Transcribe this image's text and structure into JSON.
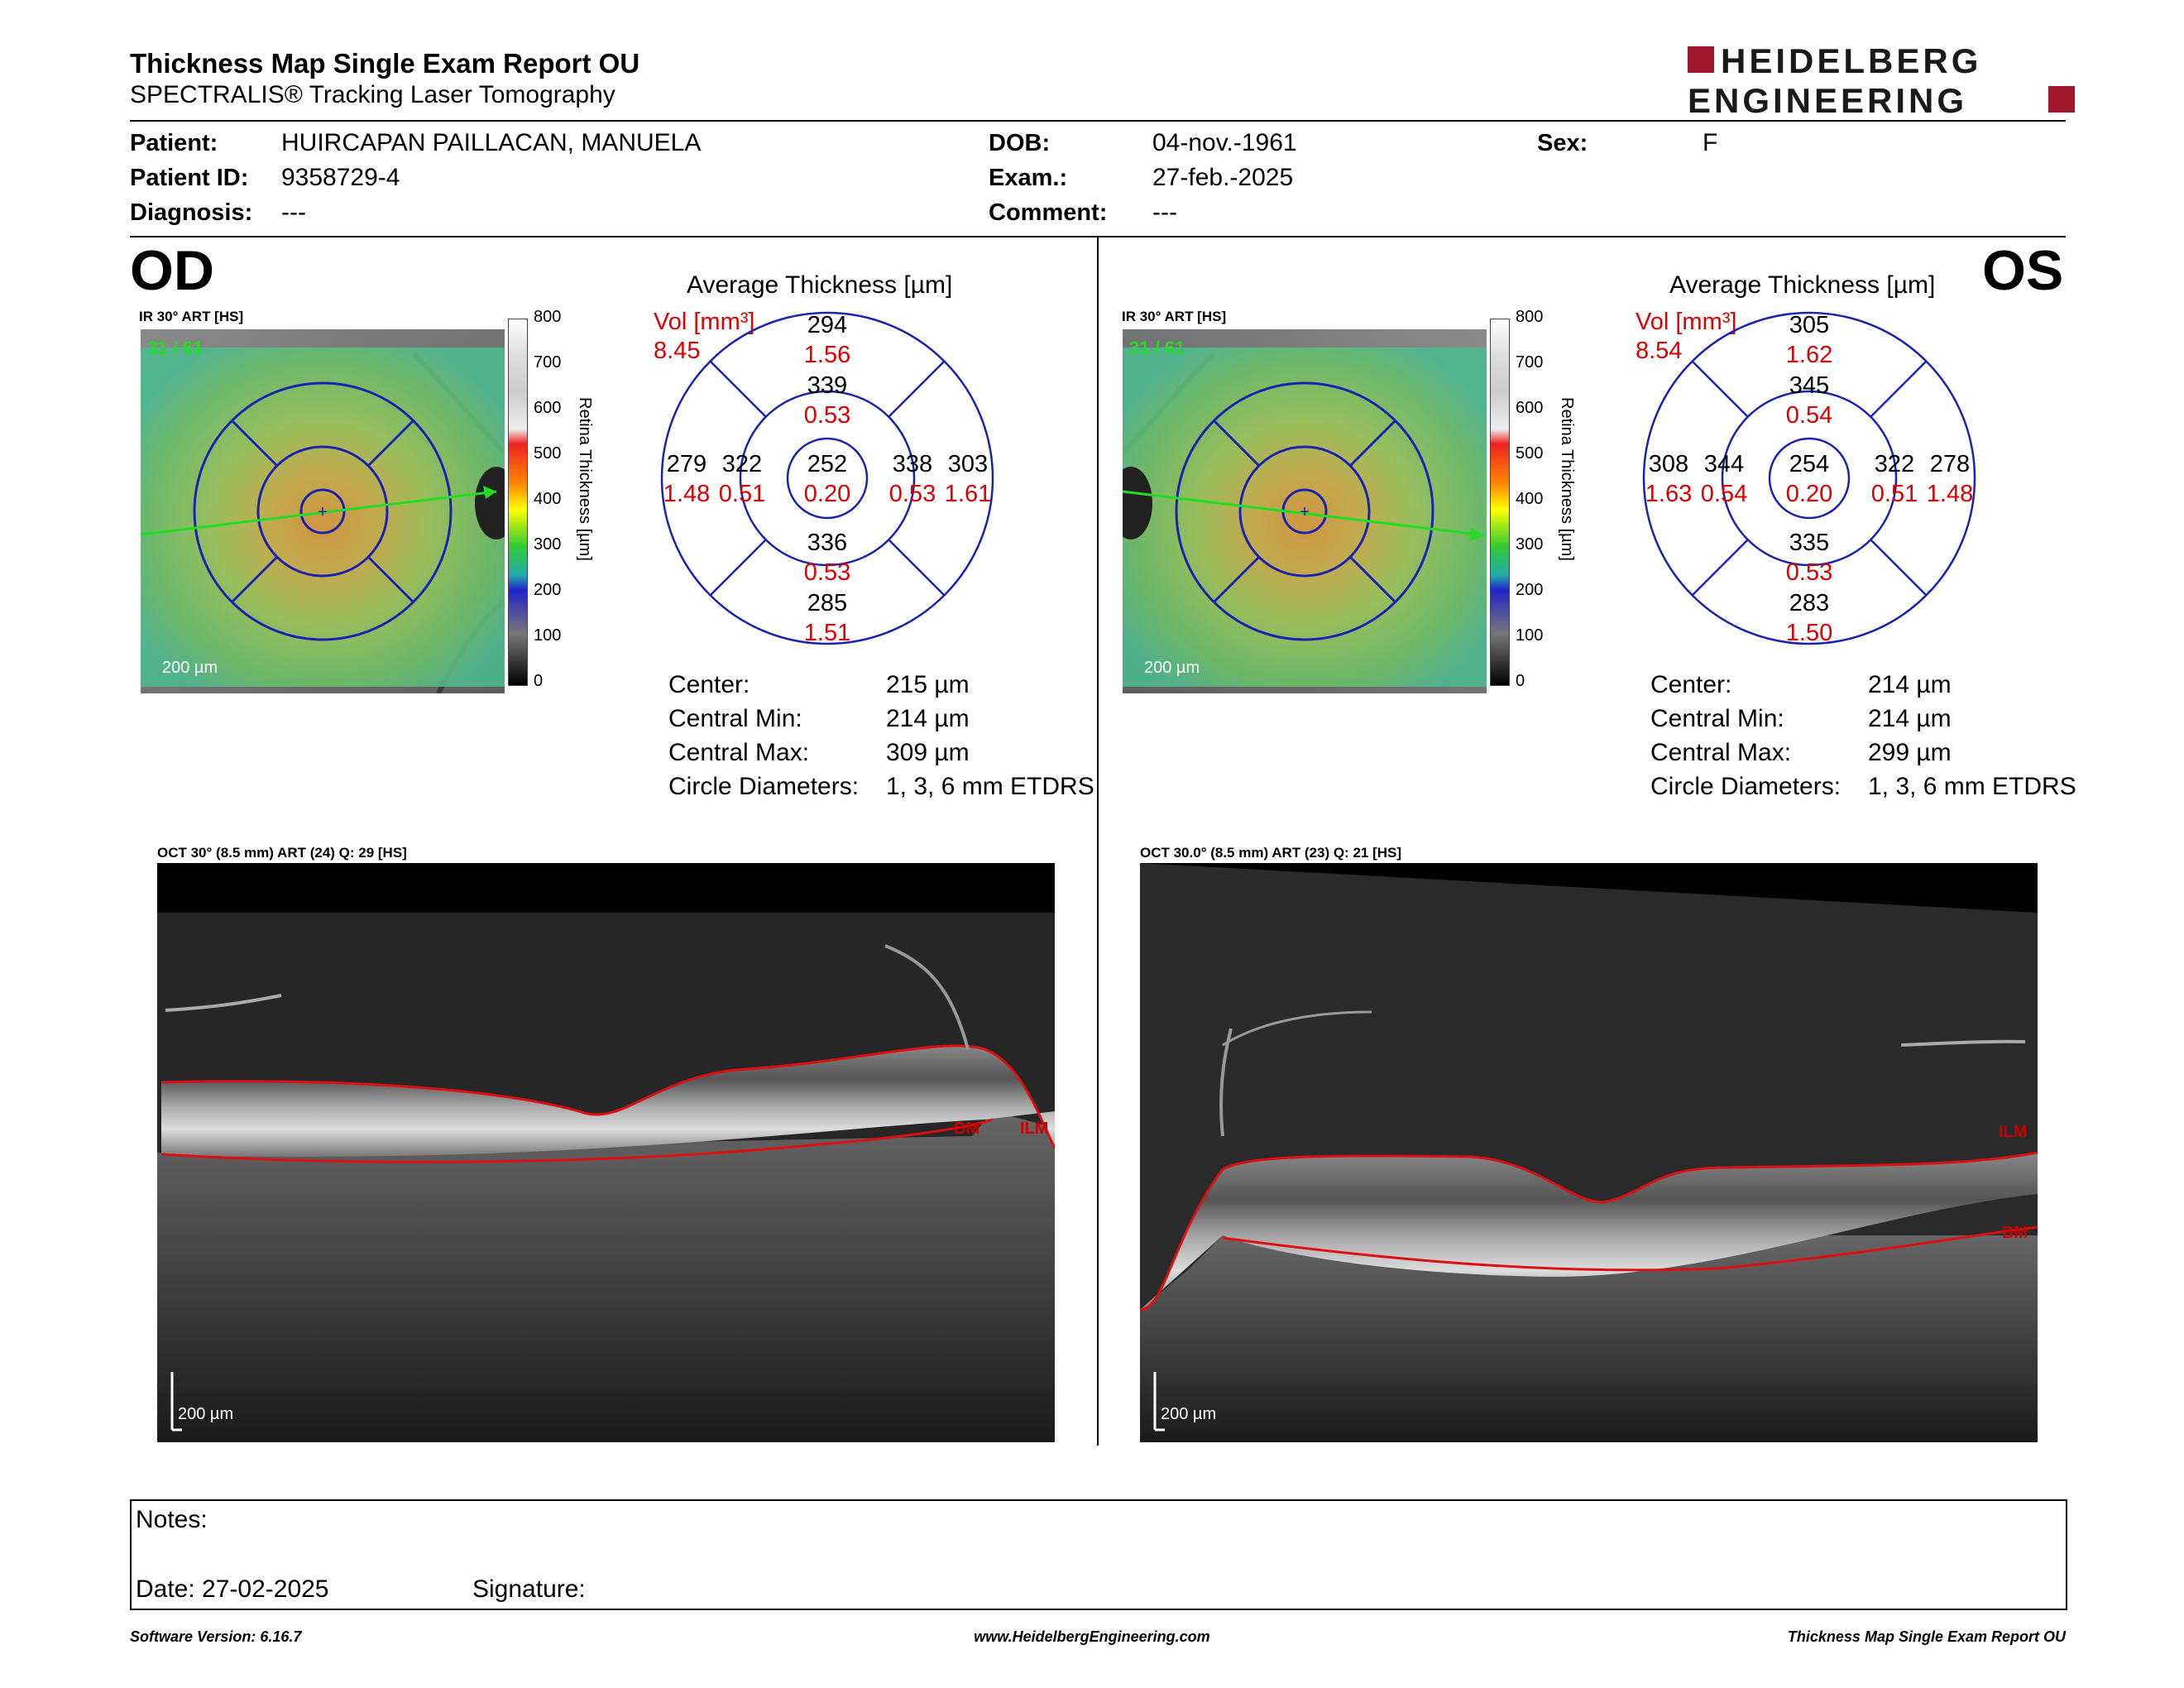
{
  "report": {
    "title": "Thickness Map Single Exam Report OU",
    "subtitle": "SPECTRALIS® Tracking Laser Tomography",
    "logo_line1": "HEIDELBERG",
    "logo_line2": "ENGINEERING",
    "logo_color": "#a0162a"
  },
  "patient": {
    "patient_label": "Patient:",
    "patient_value": "HUIRCAPAN PAILLACAN, MANUELA",
    "id_label": "Patient ID:",
    "id_value": "9358729-4",
    "diag_label": "Diagnosis:",
    "diag_value": "---",
    "dob_label": "DOB:",
    "dob_value": "04-nov.-1961",
    "exam_label": "Exam.:",
    "exam_value": "27-feb.-2025",
    "comment_label": "Comment:",
    "comment_value": "---",
    "sex_label": "Sex:",
    "sex_value": "F"
  },
  "colorbar": {
    "title": "Retina  Thickness [µm]",
    "ticks": [
      "800",
      "700",
      "600",
      "500",
      "400",
      "300",
      "200",
      "100",
      "0"
    ]
  },
  "od": {
    "eye": "OD",
    "ir_label": "IR 30° ART [HS]",
    "ir_counter": "31 / 61",
    "ir_scale": "200 µm",
    "avg_title": "Average Thickness [µm]",
    "vol_label": "Vol [mm³]",
    "vol_value": "8.45",
    "grid": {
      "center_t": "252",
      "center_v": "0.20",
      "inner_sup_t": "339",
      "inner_sup_v": "0.53",
      "inner_inf_t": "336",
      "inner_inf_v": "0.53",
      "inner_left_t": "322",
      "inner_left_v": "0.51",
      "inner_right_t": "338",
      "inner_right_v": "0.53",
      "outer_sup_t": "294",
      "outer_sup_v": "1.56",
      "outer_inf_t": "285",
      "outer_inf_v": "1.51",
      "outer_left_t": "279",
      "outer_left_v": "1.48",
      "outer_right_t": "303",
      "outer_right_v": "1.61"
    },
    "stats": {
      "center_label": "Center:",
      "center_value": "215 µm",
      "min_label": "Central Min:",
      "min_value": "214 µm",
      "max_label": "Central Max:",
      "max_value": "309 µm",
      "diam_label": "Circle Diameters:",
      "diam_value": "1, 3, 6 mm ETDRS"
    },
    "oct_label": "OCT 30° (8.5 mm) ART (24) Q: 29 [HS]",
    "oct_scale": "200 µm",
    "bm_label": "BM",
    "ilm_label": "ILM"
  },
  "os": {
    "eye": "OS",
    "ir_label": "IR 30° ART [HS]",
    "ir_counter": "31 / 61",
    "ir_scale": "200 µm",
    "avg_title": "Average Thickness [µm]",
    "vol_label": "Vol [mm³]",
    "vol_value": "8.54",
    "grid": {
      "center_t": "254",
      "center_v": "0.20",
      "inner_sup_t": "345",
      "inner_sup_v": "0.54",
      "inner_inf_t": "335",
      "inner_inf_v": "0.53",
      "inner_left_t": "344",
      "inner_left_v": "0.54",
      "inner_right_t": "322",
      "inner_right_v": "0.51",
      "outer_sup_t": "305",
      "outer_sup_v": "1.62",
      "outer_inf_t": "283",
      "outer_inf_v": "1.50",
      "outer_left_t": "308",
      "outer_left_v": "1.63",
      "outer_right_t": "278",
      "outer_right_v": "1.48"
    },
    "stats": {
      "center_label": "Center:",
      "center_value": "214 µm",
      "min_label": "Central Min:",
      "min_value": "214 µm",
      "max_label": "Central Max:",
      "max_value": "299 µm",
      "diam_label": "Circle Diameters:",
      "diam_value": "1, 3, 6 mm ETDRS"
    },
    "oct_label": "OCT 30.0° (8.5 mm) ART (23) Q: 21 [HS]",
    "oct_scale": "200 µm",
    "bm_label": "BM",
    "ilm_label": "ILM"
  },
  "notes": {
    "notes_label": "Notes:",
    "date_label": "Date: 27-02-2025",
    "signature_label": "Signature:"
  },
  "footer": {
    "left": "Software Version: 6.16.7",
    "center": "www.HeidelbergEngineering.com",
    "right": "Thickness Map Single Exam Report OU"
  }
}
